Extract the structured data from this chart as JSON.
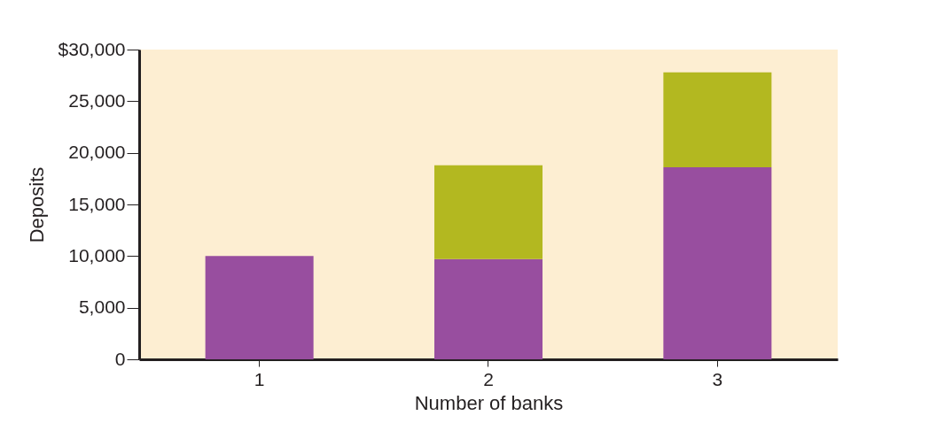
{
  "chart_data": {
    "type": "bar",
    "stacked": true,
    "xlabel": "Number of banks",
    "ylabel": "Deposits",
    "categories": [
      "1",
      "2",
      "3"
    ],
    "series": [
      {
        "color": "#984e9f",
        "values": [
          10000,
          9700,
          18600
        ]
      },
      {
        "color": "#b3b820",
        "values": [
          null,
          9100,
          9200
        ]
      }
    ],
    "ylim": [
      0,
      30000
    ],
    "yticks": [
      {
        "value": 0,
        "label": "0"
      },
      {
        "value": 5000,
        "label": "5,000"
      },
      {
        "value": 10000,
        "label": "10,000"
      },
      {
        "value": 15000,
        "label": "15,000"
      },
      {
        "value": 20000,
        "label": "20,000"
      },
      {
        "value": 25000,
        "label": "25,000"
      },
      {
        "value": 30000,
        "label": "$30,000"
      }
    ],
    "grid": false,
    "legend": false
  }
}
